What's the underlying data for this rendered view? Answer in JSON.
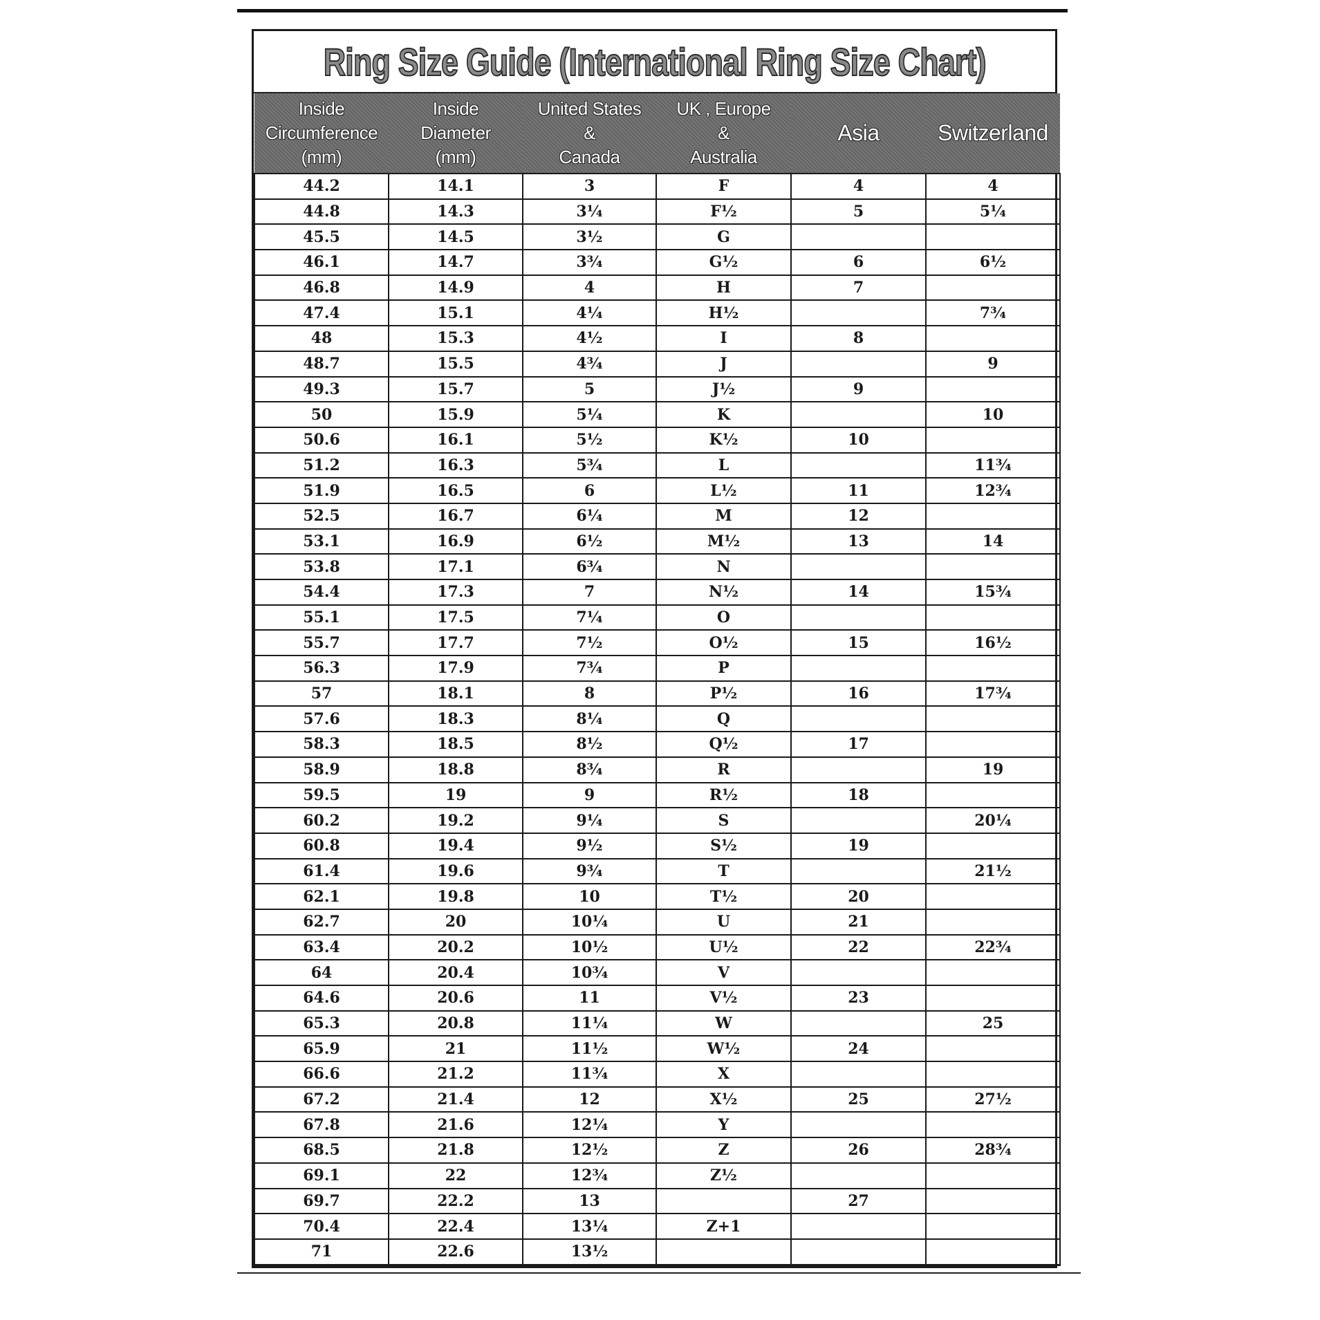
{
  "title": "Ring  Size  Guide (International Ring Size Chart)",
  "columns": [
    {
      "lines": [
        "Inside",
        "Circumference",
        "(mm)"
      ]
    },
    {
      "lines": [
        "Inside",
        "Diameter",
        "(mm)"
      ]
    },
    {
      "lines": [
        "United States",
        "&",
        "Canada"
      ]
    },
    {
      "lines": [
        "UK , Europe",
        "&",
        "Australia"
      ]
    },
    {
      "lines": [
        "Asia"
      ]
    },
    {
      "lines": [
        "Switzerland"
      ]
    }
  ],
  "rows": [
    [
      "44.2",
      "14.1",
      "3",
      "F",
      "4",
      "4"
    ],
    [
      "44.8",
      "14.3",
      "3¼",
      "F½",
      "5",
      "5¼"
    ],
    [
      "45.5",
      "14.5",
      "3½",
      "G",
      "",
      ""
    ],
    [
      "46.1",
      "14.7",
      "3¾",
      "G½",
      "6",
      "6½"
    ],
    [
      "46.8",
      "14.9",
      "4",
      "H",
      "7",
      ""
    ],
    [
      "47.4",
      "15.1",
      "4¼",
      "H½",
      "",
      "7¾"
    ],
    [
      "48",
      "15.3",
      "4½",
      "I",
      "8",
      ""
    ],
    [
      "48.7",
      "15.5",
      "4¾",
      "J",
      "",
      "9"
    ],
    [
      "49.3",
      "15.7",
      "5",
      "J½",
      "9",
      ""
    ],
    [
      "50",
      "15.9",
      "5¼",
      "K",
      "",
      "10"
    ],
    [
      "50.6",
      "16.1",
      "5½",
      "K½",
      "10",
      ""
    ],
    [
      "51.2",
      "16.3",
      "5¾",
      "L",
      "",
      "11¾"
    ],
    [
      "51.9",
      "16.5",
      "6",
      "L½",
      "11",
      "12¾"
    ],
    [
      "52.5",
      "16.7",
      "6¼",
      "M",
      "12",
      ""
    ],
    [
      "53.1",
      "16.9",
      "6½",
      "M½",
      "13",
      "14"
    ],
    [
      "53.8",
      "17.1",
      "6¾",
      "N",
      "",
      ""
    ],
    [
      "54.4",
      "17.3",
      "7",
      "N½",
      "14",
      "15¾"
    ],
    [
      "55.1",
      "17.5",
      "7¼",
      "O",
      "",
      ""
    ],
    [
      "55.7",
      "17.7",
      "7½",
      "O½",
      "15",
      "16½"
    ],
    [
      "56.3",
      "17.9",
      "7¾",
      "P",
      "",
      ""
    ],
    [
      "57",
      "18.1",
      "8",
      "P½",
      "16",
      "17¾"
    ],
    [
      "57.6",
      "18.3",
      "8¼",
      "Q",
      "",
      ""
    ],
    [
      "58.3",
      "18.5",
      "8½",
      "Q½",
      "17",
      ""
    ],
    [
      "58.9",
      "18.8",
      "8¾",
      "R",
      "",
      "19"
    ],
    [
      "59.5",
      "19",
      "9",
      "R½",
      "18",
      ""
    ],
    [
      "60.2",
      "19.2",
      "9¼",
      "S",
      "",
      "20¼"
    ],
    [
      "60.8",
      "19.4",
      "9½",
      "S½",
      "19",
      ""
    ],
    [
      "61.4",
      "19.6",
      "9¾",
      "T",
      "",
      "21½"
    ],
    [
      "62.1",
      "19.8",
      "10",
      "T½",
      "20",
      ""
    ],
    [
      "62.7",
      "20",
      "10¼",
      "U",
      "21",
      ""
    ],
    [
      "63.4",
      "20.2",
      "10½",
      "U½",
      "22",
      "22¾"
    ],
    [
      "64",
      "20.4",
      "10¾",
      "V",
      "",
      ""
    ],
    [
      "64.6",
      "20.6",
      "11",
      "V½",
      "23",
      ""
    ],
    [
      "65.3",
      "20.8",
      "11¼",
      "W",
      "",
      "25"
    ],
    [
      "65.9",
      "21",
      "11½",
      "W½",
      "24",
      ""
    ],
    [
      "66.6",
      "21.2",
      "11¾",
      "X",
      "",
      ""
    ],
    [
      "67.2",
      "21.4",
      "12",
      "X½",
      "25",
      "27½"
    ],
    [
      "67.8",
      "21.6",
      "12¼",
      "Y",
      "",
      ""
    ],
    [
      "68.5",
      "21.8",
      "12½",
      "Z",
      "26",
      "28¾"
    ],
    [
      "69.1",
      "22",
      "12¾",
      "Z½",
      "",
      ""
    ],
    [
      "69.7",
      "22.2",
      "13",
      "",
      "27",
      ""
    ],
    [
      "70.4",
      "22.4",
      "13¼",
      "Z+1",
      "",
      ""
    ],
    [
      "71",
      "22.6",
      "13½",
      "",
      "",
      ""
    ]
  ]
}
